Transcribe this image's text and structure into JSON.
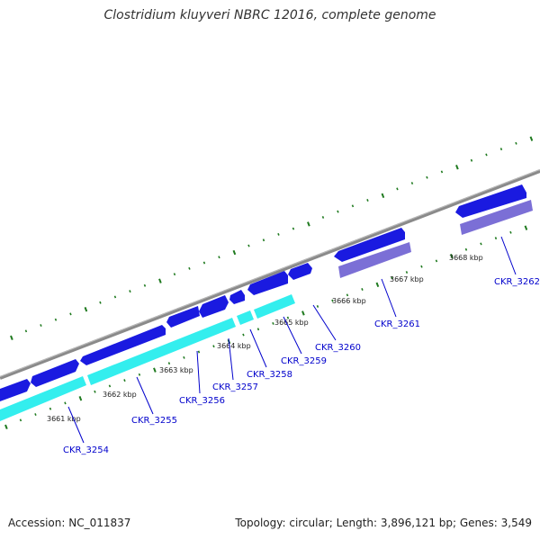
{
  "title": "Clostridium kluyveri NBRC 12016, complete genome",
  "footer": {
    "accession": "Accession: NC_011837",
    "summary": "Topology: circular; Length: 3,896,121 bp; Genes: 3,549"
  },
  "colors": {
    "cds": "#1a1ae0",
    "rna": "#33eeee",
    "pseudo": "#7b6fd6",
    "tick": "#1f7a1f",
    "backbone": "#8a8a8a",
    "label": "#0000cc"
  },
  "kbp_labels": [
    "3661 kbp",
    "3662 kbp",
    "3663 kbp",
    "3664 kbp",
    "3665 kbp",
    "3666 kbp",
    "3667 kbp",
    "3668 kbp"
  ],
  "genes": [
    "CKR_3254",
    "CKR_3255",
    "CKR_3256",
    "CKR_3257",
    "CKR_3258",
    "CKR_3259",
    "CKR_3260",
    "CKR_3261",
    "CKR_3262"
  ]
}
